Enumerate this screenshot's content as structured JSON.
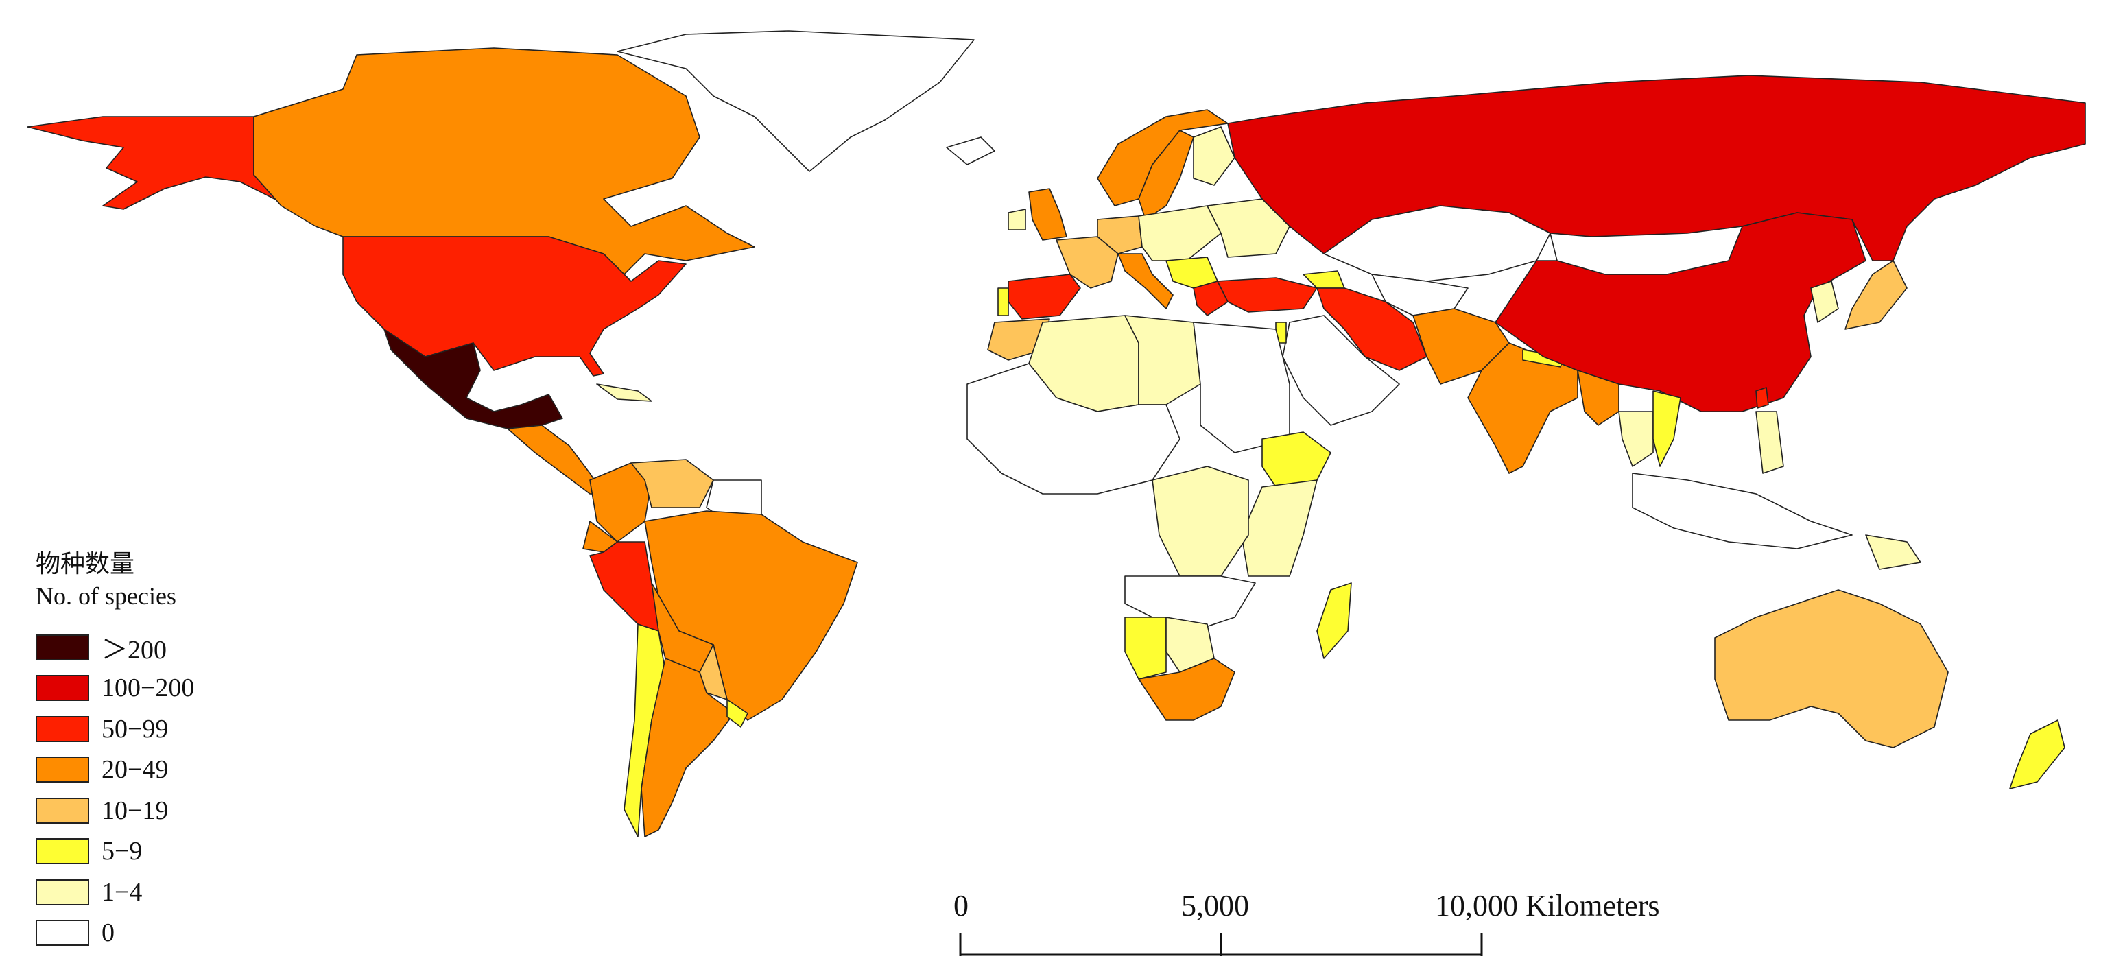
{
  "legend": {
    "title_cn": "物种数量",
    "title_en": "No. of species",
    "classes": [
      {
        "label": "＞200",
        "color": "#3d0000"
      },
      {
        "label": "100−200",
        "color": "#e00000"
      },
      {
        "label": "50−99",
        "color": "#fe2000"
      },
      {
        "label": "20−49",
        "color": "#fe8c00"
      },
      {
        "label": "10−19",
        "color": "#fec45a"
      },
      {
        "label": "5−9",
        "color": "#fefe32"
      },
      {
        "label": "1−4",
        "color": "#fefcb4"
      },
      {
        "label": "0",
        "color": "#ffffff"
      }
    ]
  },
  "scale_bar": {
    "tick_0": "0",
    "tick_mid": "5,000",
    "tick_max": "10,000 Kilometers"
  },
  "countries": [
    {
      "name": "Alaska (USA)",
      "class": "50−99"
    },
    {
      "name": "Canada",
      "class": "20−49"
    },
    {
      "name": "Greenland",
      "class": "0"
    },
    {
      "name": "United States",
      "class": "50−99"
    },
    {
      "name": "Mexico",
      "class": "＞200"
    },
    {
      "name": "Central America",
      "class": "20−49"
    },
    {
      "name": "Cuba",
      "class": "1−4"
    },
    {
      "name": "Colombia",
      "class": "20−49"
    },
    {
      "name": "Venezuela",
      "class": "10−19"
    },
    {
      "name": "Guianas",
      "class": "0"
    },
    {
      "name": "Ecuador",
      "class": "20−49"
    },
    {
      "name": "Peru",
      "class": "50−99"
    },
    {
      "name": "Brazil",
      "class": "20−49"
    },
    {
      "name": "Bolivia",
      "class": "20−49"
    },
    {
      "name": "Paraguay",
      "class": "10−19"
    },
    {
      "name": "Chile",
      "class": "5−9"
    },
    {
      "name": "Argentina",
      "class": "20−49"
    },
    {
      "name": "Uruguay",
      "class": "5−9"
    },
    {
      "name": "Iceland",
      "class": "0"
    },
    {
      "name": "United Kingdom",
      "class": "20−49"
    },
    {
      "name": "Ireland",
      "class": "1−4"
    },
    {
      "name": "Norway",
      "class": "20−49"
    },
    {
      "name": "Sweden",
      "class": "20−49"
    },
    {
      "name": "Finland",
      "class": "1−4"
    },
    {
      "name": "France",
      "class": "10−19"
    },
    {
      "name": "Spain",
      "class": "50−99"
    },
    {
      "name": "Portugal",
      "class": "5−9"
    },
    {
      "name": "Germany",
      "class": "10−19"
    },
    {
      "name": "Central Europe",
      "class": "1−4"
    },
    {
      "name": "Italy",
      "class": "20−49"
    },
    {
      "name": "Balkans",
      "class": "5−9"
    },
    {
      "name": "Greece",
      "class": "50−99"
    },
    {
      "name": "Ukraine / Belarus",
      "class": "1−4"
    },
    {
      "name": "Russia",
      "class": "100−200"
    },
    {
      "name": "Turkey",
      "class": "50−99"
    },
    {
      "name": "Caucasus",
      "class": "5−9"
    },
    {
      "name": "Kazakhstan",
      "class": "0"
    },
    {
      "name": "Central Asia",
      "class": "0"
    },
    {
      "name": "Iran",
      "class": "50−99"
    },
    {
      "name": "Arabian Peninsula",
      "class": "0"
    },
    {
      "name": "Israel",
      "class": "5−9"
    },
    {
      "name": "Afghanistan / Pakistan",
      "class": "20−49"
    },
    {
      "name": "India",
      "class": "20−49"
    },
    {
      "name": "Nepal",
      "class": "5−9"
    },
    {
      "name": "China",
      "class": "100−200"
    },
    {
      "name": "Mongolia",
      "class": "0"
    },
    {
      "name": "Korea",
      "class": "1−4"
    },
    {
      "name": "Japan",
      "class": "10−19"
    },
    {
      "name": "Taiwan",
      "class": "50−99"
    },
    {
      "name": "Myanmar",
      "class": "20−49"
    },
    {
      "name": "Thailand",
      "class": "1−4"
    },
    {
      "name": "Vietnam / Laos",
      "class": "5−9"
    },
    {
      "name": "Philippines",
      "class": "1−4"
    },
    {
      "name": "Malaysia / Indonesia",
      "class": "0"
    },
    {
      "name": "Papua New Guinea",
      "class": "1−4"
    },
    {
      "name": "Australia",
      "class": "10−19"
    },
    {
      "name": "New Zealand",
      "class": "5−9"
    },
    {
      "name": "Morocco",
      "class": "10−19"
    },
    {
      "name": "Algeria / Sahara",
      "class": "1−4"
    },
    {
      "name": "Libya",
      "class": "1−4"
    },
    {
      "name": "Egypt / Sudan",
      "class": "0"
    },
    {
      "name": "West Africa",
      "class": "0"
    },
    {
      "name": "Ethiopia",
      "class": "5−9"
    },
    {
      "name": "Kenya / Tanzania",
      "class": "1−4"
    },
    {
      "name": "DR Congo",
      "class": "1−4"
    },
    {
      "name": "Angola / Zambia",
      "class": "0"
    },
    {
      "name": "Namibia",
      "class": "5−9"
    },
    {
      "name": "Botswana",
      "class": "1−4"
    },
    {
      "name": "South Africa",
      "class": "20−49"
    },
    {
      "name": "Madagascar",
      "class": "5−9"
    }
  ]
}
